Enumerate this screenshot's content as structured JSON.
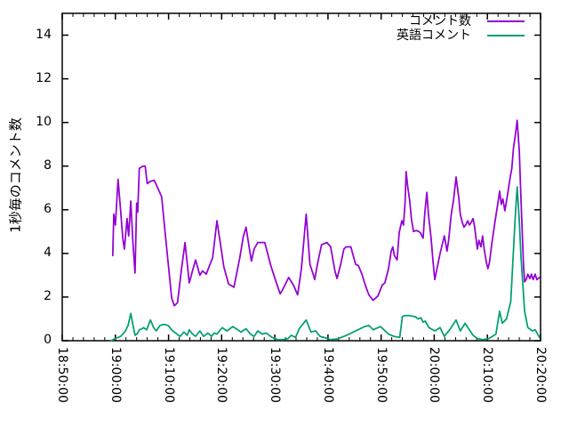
{
  "figure": {
    "background": "#ffffff",
    "axis_color": "#000000",
    "text_color": "#000000"
  },
  "chart_data": {
    "type": "line",
    "title": "",
    "xlabel": "",
    "ylabel": "1秒毎のコメント数",
    "grid": false,
    "legend_position": "top-right-inside",
    "ylim": [
      0,
      15
    ],
    "y_ticks": [
      0,
      2,
      4,
      6,
      8,
      10,
      12,
      14
    ],
    "x_range_minutes": [
      0,
      90
    ],
    "x_minor_tick_interval_minutes": 2,
    "x_ticks": [
      {
        "m": 0,
        "label": "18:50:00"
      },
      {
        "m": 10,
        "label": "19:00:00"
      },
      {
        "m": 20,
        "label": "19:10:00"
      },
      {
        "m": 30,
        "label": "19:20:00"
      },
      {
        "m": 40,
        "label": "19:30:00"
      },
      {
        "m": 50,
        "label": "19:40:00"
      },
      {
        "m": 60,
        "label": "19:50:00"
      },
      {
        "m": 70,
        "label": "20:00:00"
      },
      {
        "m": 80,
        "label": "20:10:00"
      },
      {
        "m": 90,
        "label": "20:20:00"
      }
    ],
    "series": [
      {
        "name": "コメント数",
        "color": "#9400d3",
        "points": [
          [
            9.5,
            3.9
          ],
          [
            9.7,
            5.8
          ],
          [
            10.0,
            5.3
          ],
          [
            10.5,
            7.4
          ],
          [
            11.0,
            5.9
          ],
          [
            11.4,
            4.7
          ],
          [
            11.7,
            4.2
          ],
          [
            12.2,
            5.6
          ],
          [
            12.5,
            4.8
          ],
          [
            12.9,
            6.4
          ],
          [
            13.3,
            4.5
          ],
          [
            13.7,
            3.1
          ],
          [
            14.0,
            6.3
          ],
          [
            14.2,
            5.9
          ],
          [
            14.5,
            7.9
          ],
          [
            15.2,
            8.0
          ],
          [
            15.6,
            8.0
          ],
          [
            16.0,
            7.2
          ],
          [
            16.6,
            7.3
          ],
          [
            17.3,
            7.35
          ],
          [
            17.6,
            7.2
          ],
          [
            18.7,
            6.6
          ],
          [
            19.5,
            4.6
          ],
          [
            20.6,
            1.95
          ],
          [
            21.1,
            1.6
          ],
          [
            21.7,
            1.75
          ],
          [
            22.4,
            3.2
          ],
          [
            23.1,
            4.5
          ],
          [
            23.9,
            2.65
          ],
          [
            24.5,
            3.2
          ],
          [
            25.1,
            3.7
          ],
          [
            25.9,
            3.0
          ],
          [
            26.4,
            3.2
          ],
          [
            27.1,
            3.05
          ],
          [
            27.8,
            3.5
          ],
          [
            28.3,
            3.8
          ],
          [
            29.1,
            5.5
          ],
          [
            29.8,
            4.4
          ],
          [
            30.4,
            3.4
          ],
          [
            31.3,
            2.6
          ],
          [
            32.3,
            2.45
          ],
          [
            33.4,
            3.8
          ],
          [
            34.1,
            4.8
          ],
          [
            34.6,
            5.2
          ],
          [
            35.1,
            4.4
          ],
          [
            35.6,
            3.65
          ],
          [
            36.1,
            4.2
          ],
          [
            36.8,
            4.5
          ],
          [
            38.1,
            4.5
          ],
          [
            39.3,
            3.4
          ],
          [
            40.1,
            2.8
          ],
          [
            41.0,
            2.15
          ],
          [
            41.5,
            2.35
          ],
          [
            42.1,
            2.65
          ],
          [
            42.6,
            2.9
          ],
          [
            43.5,
            2.55
          ],
          [
            44.3,
            2.1
          ],
          [
            45.0,
            3.3
          ],
          [
            45.9,
            5.8
          ],
          [
            46.6,
            3.5
          ],
          [
            47.2,
            3.05
          ],
          [
            47.5,
            2.8
          ],
          [
            48.1,
            3.6
          ],
          [
            48.8,
            4.4
          ],
          [
            49.8,
            4.5
          ],
          [
            50.5,
            4.3
          ],
          [
            51.3,
            3.2
          ],
          [
            51.7,
            2.85
          ],
          [
            52.4,
            3.5
          ],
          [
            53.0,
            4.2
          ],
          [
            53.4,
            4.3
          ],
          [
            54.3,
            4.3
          ],
          [
            55.2,
            3.5
          ],
          [
            55.7,
            3.45
          ],
          [
            56.4,
            3.05
          ],
          [
            57.1,
            2.5
          ],
          [
            57.7,
            2.1
          ],
          [
            58.5,
            1.85
          ],
          [
            59.4,
            2.05
          ],
          [
            60.2,
            2.55
          ],
          [
            60.7,
            2.65
          ],
          [
            61.4,
            3.3
          ],
          [
            61.9,
            4.1
          ],
          [
            62.2,
            4.3
          ],
          [
            62.5,
            3.9
          ],
          [
            63.0,
            3.7
          ],
          [
            63.4,
            4.95
          ],
          [
            63.9,
            5.5
          ],
          [
            64.2,
            5.3
          ],
          [
            64.5,
            6.3
          ],
          [
            64.7,
            7.75
          ],
          [
            65.0,
            7.05
          ],
          [
            65.4,
            6.4
          ],
          [
            65.7,
            5.6
          ],
          [
            66.1,
            5.0
          ],
          [
            66.6,
            5.05
          ],
          [
            67.1,
            5.0
          ],
          [
            67.4,
            4.95
          ],
          [
            67.9,
            4.7
          ],
          [
            68.2,
            5.8
          ],
          [
            68.6,
            6.8
          ],
          [
            68.9,
            5.8
          ],
          [
            69.4,
            4.7
          ],
          [
            69.7,
            3.8
          ],
          [
            70.1,
            2.8
          ],
          [
            70.6,
            3.4
          ],
          [
            71.1,
            4.0
          ],
          [
            71.7,
            4.6
          ],
          [
            71.9,
            4.8
          ],
          [
            72.4,
            4.1
          ],
          [
            72.7,
            4.6
          ],
          [
            73.2,
            5.8
          ],
          [
            73.6,
            6.4
          ],
          [
            74.1,
            7.5
          ],
          [
            74.6,
            6.6
          ],
          [
            74.9,
            5.8
          ],
          [
            75.3,
            5.4
          ],
          [
            75.6,
            5.2
          ],
          [
            75.9,
            5.3
          ],
          [
            76.3,
            5.5
          ],
          [
            76.6,
            5.3
          ],
          [
            76.9,
            5.4
          ],
          [
            77.3,
            5.6
          ],
          [
            77.6,
            5.2
          ],
          [
            78.1,
            4.2
          ],
          [
            78.4,
            4.6
          ],
          [
            78.8,
            4.3
          ],
          [
            79.1,
            4.8
          ],
          [
            79.4,
            4.2
          ],
          [
            79.8,
            3.6
          ],
          [
            80.1,
            3.3
          ],
          [
            80.4,
            3.6
          ],
          [
            80.8,
            4.4
          ],
          [
            81.1,
            4.9
          ],
          [
            81.4,
            5.4
          ],
          [
            81.9,
            6.2
          ],
          [
            82.3,
            6.85
          ],
          [
            82.6,
            6.25
          ],
          [
            82.9,
            6.5
          ],
          [
            83.3,
            5.95
          ],
          [
            83.6,
            6.4
          ],
          [
            83.9,
            6.85
          ],
          [
            84.3,
            7.5
          ],
          [
            84.6,
            7.9
          ],
          [
            84.9,
            8.8
          ],
          [
            85.3,
            9.5
          ],
          [
            85.6,
            10.1
          ],
          [
            86.0,
            8.7
          ],
          [
            86.3,
            6.6
          ],
          [
            86.5,
            5.3
          ],
          [
            86.8,
            3.4
          ],
          [
            87.0,
            2.7
          ],
          [
            87.3,
            2.8
          ],
          [
            87.6,
            3.05
          ],
          [
            88.0,
            2.85
          ],
          [
            88.3,
            3.05
          ],
          [
            88.6,
            2.8
          ],
          [
            89.0,
            3.05
          ],
          [
            89.3,
            2.8
          ],
          [
            89.8,
            2.9
          ]
        ]
      },
      {
        "name": "英語コメント",
        "color": "#009e73",
        "points": [
          [
            9.2,
            0.0
          ],
          [
            10.0,
            0.1
          ],
          [
            11.0,
            0.2
          ],
          [
            11.9,
            0.45
          ],
          [
            12.4,
            0.7
          ],
          [
            12.9,
            1.25
          ],
          [
            13.4,
            0.6
          ],
          [
            13.7,
            0.25
          ],
          [
            14.2,
            0.35
          ],
          [
            14.5,
            0.5
          ],
          [
            15.0,
            0.55
          ],
          [
            15.3,
            0.6
          ],
          [
            15.9,
            0.5
          ],
          [
            16.6,
            0.95
          ],
          [
            17.2,
            0.6
          ],
          [
            17.7,
            0.45
          ],
          [
            18.4,
            0.7
          ],
          [
            19.1,
            0.75
          ],
          [
            19.9,
            0.7
          ],
          [
            20.8,
            0.45
          ],
          [
            21.6,
            0.3
          ],
          [
            22.2,
            0.2
          ],
          [
            22.9,
            0.4
          ],
          [
            23.5,
            0.25
          ],
          [
            23.9,
            0.5
          ],
          [
            24.5,
            0.3
          ],
          [
            25.1,
            0.2
          ],
          [
            25.9,
            0.45
          ],
          [
            26.6,
            0.2
          ],
          [
            27.4,
            0.35
          ],
          [
            28.1,
            0.2
          ],
          [
            28.6,
            0.35
          ],
          [
            29.1,
            0.3
          ],
          [
            30.1,
            0.6
          ],
          [
            31.0,
            0.45
          ],
          [
            32.1,
            0.65
          ],
          [
            33.0,
            0.5
          ],
          [
            33.6,
            0.4
          ],
          [
            34.6,
            0.55
          ],
          [
            35.4,
            0.3
          ],
          [
            36.1,
            0.2
          ],
          [
            36.8,
            0.45
          ],
          [
            37.6,
            0.3
          ],
          [
            38.4,
            0.35
          ],
          [
            39.5,
            0.15
          ],
          [
            40.5,
            0.05
          ],
          [
            41.5,
            0.05
          ],
          [
            42.5,
            0.1
          ],
          [
            43.1,
            0.25
          ],
          [
            43.9,
            0.15
          ],
          [
            44.6,
            0.55
          ],
          [
            45.9,
            0.95
          ],
          [
            46.8,
            0.4
          ],
          [
            47.7,
            0.45
          ],
          [
            48.5,
            0.2
          ],
          [
            49.7,
            0.12
          ],
          [
            50.5,
            0.05
          ],
          [
            51.8,
            0.08
          ],
          [
            53.5,
            0.25
          ],
          [
            55.2,
            0.45
          ],
          [
            56.9,
            0.65
          ],
          [
            57.7,
            0.7
          ],
          [
            58.5,
            0.5
          ],
          [
            59.4,
            0.6
          ],
          [
            59.9,
            0.65
          ],
          [
            61.4,
            0.3
          ],
          [
            62.4,
            0.2
          ],
          [
            63.5,
            0.15
          ],
          [
            64.0,
            1.1
          ],
          [
            64.4,
            1.15
          ],
          [
            65.4,
            1.15
          ],
          [
            66.4,
            1.1
          ],
          [
            67.0,
            1.0
          ],
          [
            67.5,
            1.05
          ],
          [
            67.9,
            0.85
          ],
          [
            68.3,
            0.9
          ],
          [
            69.0,
            0.6
          ],
          [
            70.1,
            0.45
          ],
          [
            71.1,
            0.6
          ],
          [
            71.9,
            0.2
          ],
          [
            72.9,
            0.5
          ],
          [
            74.1,
            0.95
          ],
          [
            74.9,
            0.45
          ],
          [
            75.8,
            0.8
          ],
          [
            76.6,
            0.5
          ],
          [
            77.3,
            0.25
          ],
          [
            78.1,
            0.1
          ],
          [
            79.1,
            0.05
          ],
          [
            80.3,
            0.1
          ],
          [
            81.6,
            0.3
          ],
          [
            82.3,
            1.35
          ],
          [
            82.8,
            0.8
          ],
          [
            83.6,
            1.0
          ],
          [
            84.4,
            1.8
          ],
          [
            84.8,
            3.65
          ],
          [
            85.2,
            5.5
          ],
          [
            85.6,
            7.05
          ],
          [
            86.0,
            5.5
          ],
          [
            86.3,
            3.9
          ],
          [
            87.0,
            1.35
          ],
          [
            87.6,
            0.6
          ],
          [
            88.5,
            0.45
          ],
          [
            89.0,
            0.5
          ],
          [
            89.8,
            0.15
          ]
        ]
      }
    ]
  }
}
